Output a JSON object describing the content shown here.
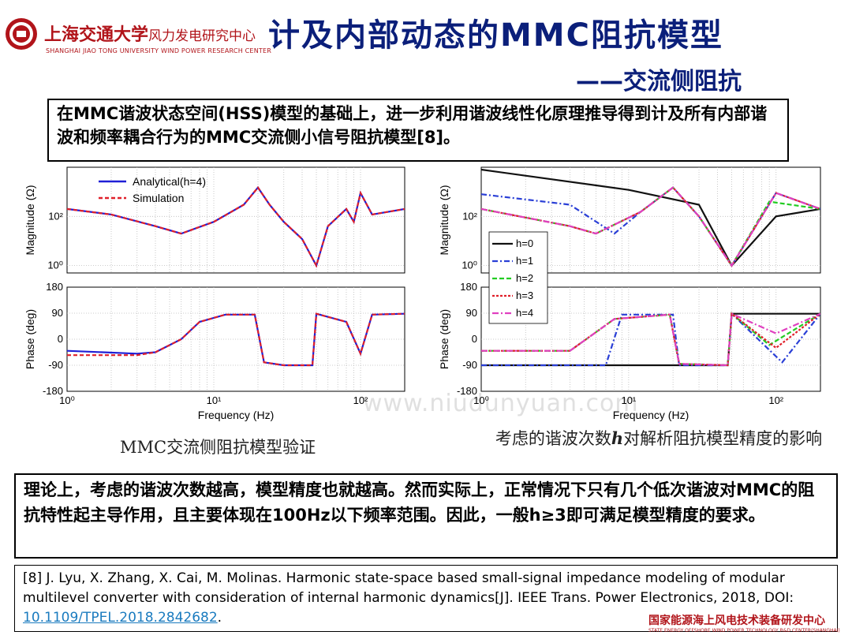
{
  "header": {
    "logo_cn": "上海交通大学",
    "logo_cn_sub": "风力发电研究中心",
    "logo_en": "SHANGHAI JIAO TONG UNIVERSITY WIND POWER RESEARCH CENTER",
    "title": "计及内部动态的MMC阻抗模型",
    "subtitle": "——交流侧阻抗"
  },
  "intro": {
    "text_a": "在",
    "b1": "MMC",
    "text_b": "谐波状态空间",
    "b2": "(HSS)",
    "text_c": "模型的基础上，进一步利用谐波线性化原理推导得到计及所有内部谐波和频率耦合行为的",
    "b3": "MMC",
    "text_d": "交流侧小信号阻抗模型",
    "b4": "[8]",
    "text_e": "。"
  },
  "figure_left": {
    "caption": "MMC交流侧阻抗模型验证",
    "mag_ylabel": "Magnitude (Ω)",
    "phase_ylabel": "Phase (deg)",
    "xlabel": "Frequency (Hz)",
    "legend": [
      "Analytical(h=4)",
      "Simulation"
    ]
  },
  "figure_right": {
    "caption_a": "考虑的谐波次数",
    "caption_h": "h",
    "caption_b": "对解析阻抗模型精度的影响",
    "mag_ylabel": "Magnitude (Ω)",
    "phase_ylabel": "Phase (deg)",
    "xlabel": "Frequency (Hz)",
    "legend": [
      "h=0",
      "h=1",
      "h=2",
      "h=3",
      "h=4"
    ]
  },
  "ticks": {
    "mag": [
      "10²",
      "10⁰"
    ],
    "phase": [
      "180",
      "90",
      "0",
      "-90",
      "-180"
    ],
    "freq": [
      "10⁰",
      "10¹",
      "10²"
    ]
  },
  "conclusion": {
    "t1": "理论上，考虑的谐波次数越高，模型精度也就越高。然而实际上，正常情况下只有几个低次谐波对",
    "b1": "MMC",
    "t2": "的阻抗特性起主导作用，且主要体现在",
    "b2": "100Hz",
    "t3": "以下频率范围。因此，一般",
    "b3": "h≥3",
    "t4": "即可满足模型精度的要求。"
  },
  "reference": {
    "text": "[8] J. Lyu, X. Zhang, X. Cai, M. Molinas. Harmonic state-space based small-signal impedance modeling of modular multilevel converter with consideration of internal harmonic dynamics[J]. IEEE Trans. Power Electronics, 2018, DOI: ",
    "doi": "10.1109/TPEL.2018.2842682",
    "end": "."
  },
  "footer": {
    "cn": "国家能源海上风电技术装备研发中心",
    "en": "STATE ENERGY OFFSHORE WIND POWER TECHNOLOGY R&D CENTER(SHANGHAI)"
  },
  "watermark": "www.niudunyuan.com",
  "colors": {
    "title": "#0b1f7a",
    "brand_red": "#b1141a",
    "analytical": "#1f1fd6",
    "simulation": "#e0202a",
    "h0": "#111111",
    "h1": "#2a3fd6",
    "h2": "#22cc22",
    "h3": "#e0202a",
    "h4": "#e040c0"
  },
  "chart_data": [
    {
      "type": "line",
      "title": "",
      "xlabel": "Frequency (Hz)",
      "xscale": "log",
      "xlim": [
        1,
        200
      ],
      "panels": [
        {
          "ylabel": "Magnitude (Ω)",
          "yscale": "log",
          "series": [
            {
              "name": "Analytical(h=4)",
              "x": [
                1,
                2,
                4,
                6,
                10,
                16,
                20,
                24,
                30,
                40,
                50,
                60,
                80,
                90,
                100,
                120,
                200
              ],
              "y": [
                200,
                120,
                40,
                20,
                60,
                300,
                1500,
                300,
                60,
                12,
                1,
                40,
                200,
                60,
                900,
                120,
                200
              ]
            },
            {
              "name": "Simulation",
              "x": [
                1,
                2,
                4,
                6,
                10,
                16,
                20,
                24,
                30,
                40,
                50,
                60,
                80,
                90,
                100,
                120,
                200
              ],
              "y": [
                200,
                120,
                40,
                20,
                60,
                300,
                1500,
                300,
                60,
                12,
                1,
                40,
                200,
                60,
                900,
                120,
                200
              ]
            }
          ]
        },
        {
          "ylabel": "Phase (deg)",
          "ylim": [
            -180,
            180
          ],
          "series": [
            {
              "name": "Analytical(h=4)",
              "x": [
                1,
                3,
                4,
                6,
                8,
                12,
                19,
                22,
                30,
                47,
                50,
                80,
                100,
                120,
                200
              ],
              "y": [
                -40,
                -50,
                -45,
                0,
                60,
                85,
                85,
                -80,
                -90,
                -90,
                88,
                60,
                -50,
                85,
                88
              ]
            },
            {
              "name": "Simulation",
              "x": [
                1,
                3,
                4,
                6,
                8,
                12,
                19,
                22,
                30,
                47,
                50,
                80,
                100,
                120,
                200
              ],
              "y": [
                -55,
                -55,
                -45,
                0,
                60,
                85,
                85,
                -80,
                -90,
                -90,
                88,
                60,
                -50,
                85,
                88
              ]
            }
          ]
        }
      ]
    },
    {
      "type": "line",
      "title": "",
      "xlabel": "Frequency (Hz)",
      "xscale": "log",
      "xlim": [
        1,
        200
      ],
      "panels": [
        {
          "ylabel": "Magnitude (Ω)",
          "yscale": "log",
          "series": [
            {
              "name": "h=0",
              "x": [
                1,
                10,
                30,
                50,
                100,
                200
              ],
              "y": [
                8000,
                1200,
                300,
                1,
                100,
                200
              ]
            },
            {
              "name": "h=1",
              "x": [
                1,
                4,
                8,
                12,
                20,
                30,
                50,
                100,
                200
              ],
              "y": [
                800,
                300,
                20,
                150,
                1500,
                100,
                1,
                900,
                200
              ]
            },
            {
              "name": "h=2",
              "x": [
                1,
                4,
                6,
                12,
                20,
                30,
                50,
                90,
                200
              ],
              "y": [
                200,
                40,
                20,
                150,
                1500,
                100,
                1,
                400,
                200
              ]
            },
            {
              "name": "h=3",
              "x": [
                1,
                4,
                6,
                12,
                20,
                30,
                50,
                100,
                200
              ],
              "y": [
                200,
                40,
                20,
                150,
                1500,
                100,
                1,
                900,
                200
              ]
            },
            {
              "name": "h=4",
              "x": [
                1,
                4,
                6,
                12,
                20,
                30,
                50,
                100,
                200
              ],
              "y": [
                200,
                40,
                20,
                150,
                1500,
                100,
                1,
                900,
                200
              ]
            }
          ]
        },
        {
          "ylabel": "Phase (deg)",
          "ylim": [
            -180,
            180
          ],
          "series": [
            {
              "name": "h=0",
              "x": [
                1,
                47,
                50,
                200
              ],
              "y": [
                -90,
                -90,
                88,
                88
              ]
            },
            {
              "name": "h=1",
              "x": [
                1,
                7,
                9,
                20,
                22,
                47,
                50,
                110,
                200
              ],
              "y": [
                -90,
                -90,
                85,
                85,
                -90,
                -90,
                88,
                -80,
                88
              ]
            },
            {
              "name": "h=2",
              "x": [
                1,
                4,
                8,
                19,
                22,
                47,
                50,
                90,
                200
              ],
              "y": [
                -40,
                -40,
                70,
                85,
                -85,
                -90,
                88,
                -20,
                88
              ]
            },
            {
              "name": "h=3",
              "x": [
                1,
                4,
                8,
                19,
                22,
                47,
                50,
                100,
                200
              ],
              "y": [
                -40,
                -40,
                70,
                85,
                -85,
                -90,
                88,
                -30,
                88
              ]
            },
            {
              "name": "h=4",
              "x": [
                1,
                4,
                8,
                19,
                22,
                47,
                50,
                100,
                200
              ],
              "y": [
                -40,
                -40,
                70,
                85,
                -85,
                -90,
                88,
                20,
                88
              ]
            }
          ]
        }
      ]
    }
  ]
}
